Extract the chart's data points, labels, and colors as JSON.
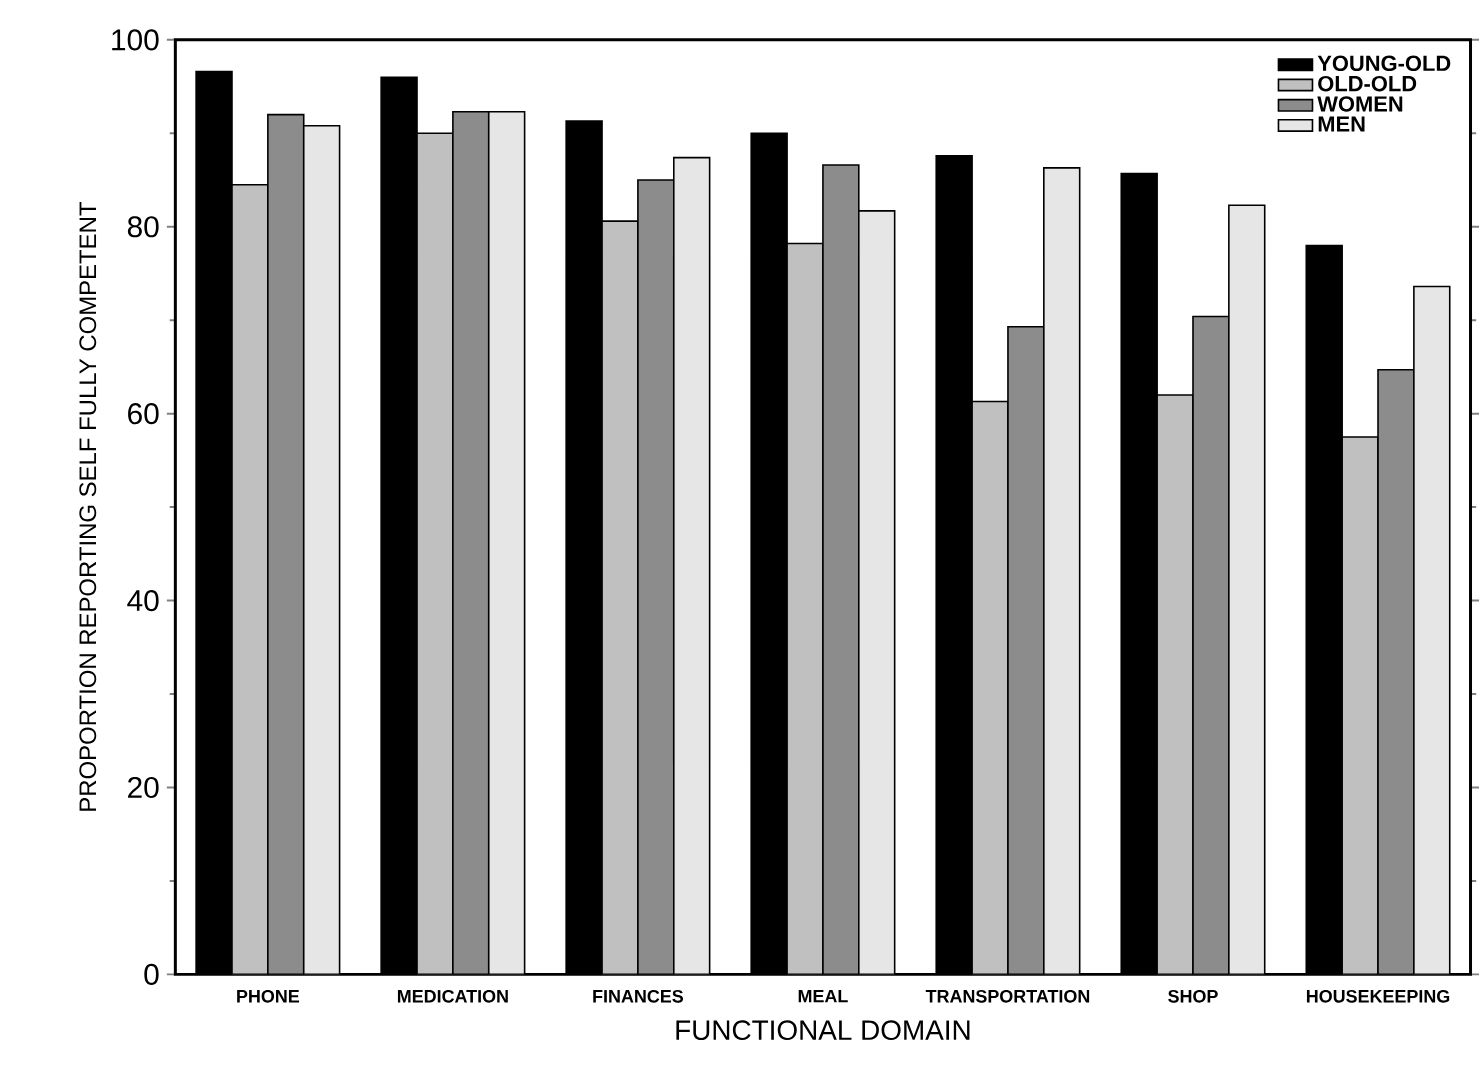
{
  "chart_data": {
    "type": "bar",
    "xlabel": "FUNCTIONAL DOMAIN",
    "ylabel": "PROPORTION REPORTING SELF FULLY COMPETENT",
    "categories": [
      "PHONE",
      "MEDICATION",
      "FINANCES",
      "MEAL",
      "TRANSPORTATION",
      "SHOP",
      "HOUSEKEEPING"
    ],
    "series": [
      {
        "name": "YOUNG-OLD",
        "color": "#000000",
        "values": [
          96.6,
          96,
          91.3,
          90,
          87.6,
          85.7,
          78
        ]
      },
      {
        "name": "OLD-OLD",
        "color": "#c0c0c0",
        "values": [
          84.5,
          90,
          80.6,
          78.2,
          61.3,
          62,
          57.5
        ]
      },
      {
        "name": "WOMEN",
        "color": "#8c8c8c",
        "values": [
          92,
          92.3,
          85,
          86.6,
          69.3,
          70.4,
          64.7
        ]
      },
      {
        "name": "MEN",
        "color": "#e6e6e6",
        "values": [
          90.8,
          92.3,
          87.4,
          81.7,
          86.3,
          82.3,
          73.6
        ]
      }
    ],
    "ylim": [
      0,
      100
    ],
    "yticks": [
      0,
      20,
      40,
      60,
      80,
      100
    ],
    "grid": false,
    "legend": "top right"
  }
}
